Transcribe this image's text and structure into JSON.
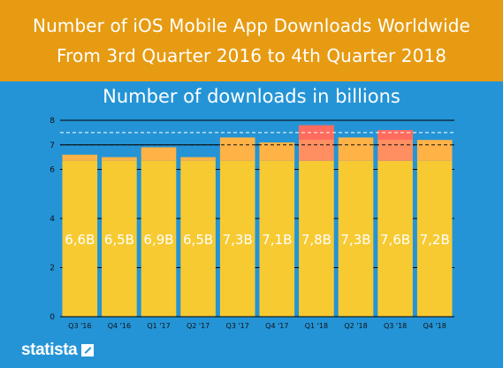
{
  "header": {
    "title_line1": "Number of iOS Mobile App Downloads Worldwide",
    "title_line2": "From 3rd Quarter 2016 to 4th Quarter 2018"
  },
  "chart_data": {
    "type": "bar",
    "subtitle": "Number of downloads in billions",
    "categories": [
      "Q3 '16",
      "Q4 '16",
      "Q1 '17",
      "Q2 '17",
      "Q3 '17",
      "Q4 '17",
      "Q1 '18",
      "Q2 '18",
      "Q3 '18",
      "Q4 '18"
    ],
    "values": [
      6.6,
      6.5,
      6.9,
      6.5,
      7.3,
      7.1,
      7.8,
      7.3,
      7.6,
      7.2
    ],
    "value_labels": [
      "6,6B",
      "6,5B",
      "6,9B",
      "6,5B",
      "7,3B",
      "7,1B",
      "7,8B",
      "7,3B",
      "7,6B",
      "7,2B"
    ],
    "yticks": [
      0,
      2,
      4,
      6,
      7,
      8
    ],
    "ylim": [
      0,
      8
    ],
    "grid": true,
    "reference_lines": [
      7,
      7.5
    ],
    "colors": {
      "base": "#f7ca32",
      "upper": "#ffb347",
      "peak": "#ff6b5e",
      "peak_upper": "#ff8e61"
    }
  },
  "brand": {
    "logo_text": "statista",
    "logo_icon": "statista-arrow-icon"
  },
  "theme": {
    "header_bg": "#e79b12",
    "background": "#2494d6",
    "text": "#ffffff"
  }
}
